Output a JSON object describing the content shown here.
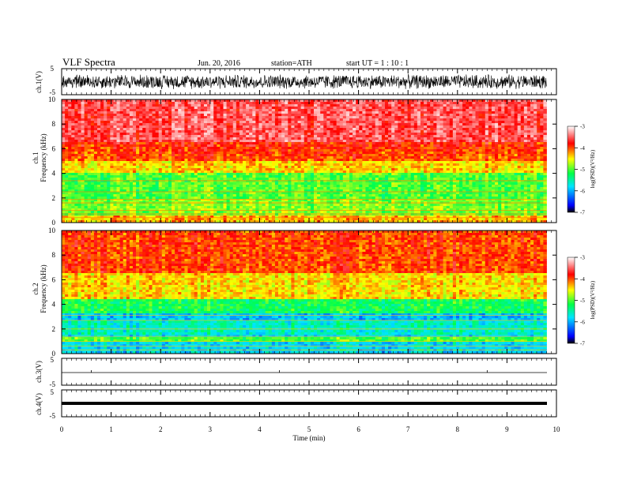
{
  "header": {
    "title": "VLF  Spectra",
    "date": "Jun. 20, 2016",
    "station": "station=ATH",
    "start": "start  UT  =   1  : 10 : 1"
  },
  "chart_data": [
    {
      "type": "line",
      "panel": "ch1-waveform",
      "ylabel": "ch.1(V)",
      "ylim": [
        -5,
        5
      ],
      "y_ticks": [
        "5",
        "-5"
      ],
      "xlim": [
        0,
        10
      ],
      "x_data_range": [
        0,
        9.8
      ],
      "description_of_signal": "dense noise band approx -2.5 to 2.5 V"
    },
    {
      "type": "heatmap",
      "panel": "ch1-spectrogram",
      "ylabel": "ch.1\nFrequency  (kHz)",
      "ylim": [
        0,
        10
      ],
      "y_ticks": [
        "0",
        "2",
        "4",
        "6",
        "8",
        "10"
      ],
      "xlim": [
        0,
        10
      ],
      "x_data_range": [
        0,
        9.8
      ],
      "colorbar": {
        "label": "log(PSD)(V²/Hz)",
        "range": [
          -7,
          -3
        ],
        "ticks": [
          "-3",
          "-4",
          "-5",
          "-6",
          "-7"
        ],
        "colors": [
          "#000000",
          "#0000ff",
          "#00e5ff",
          "#00ff4a",
          "#ffff00",
          "#ff0000",
          "#ffffff"
        ]
      }
    },
    {
      "type": "heatmap",
      "panel": "ch2-spectrogram",
      "ylabel": "ch.2\nFrequency  (kHz)",
      "ylim": [
        0,
        10
      ],
      "y_ticks": [
        "0",
        "2",
        "4",
        "6",
        "8",
        "10"
      ],
      "xlim": [
        0,
        10
      ],
      "x_data_range": [
        0,
        9.8
      ],
      "colorbar": {
        "label": "log(PSD)(V²/Hz)",
        "range": [
          -7,
          -3
        ],
        "ticks": [
          "-3",
          "-4",
          "-5",
          "-6",
          "-7"
        ],
        "colors": [
          "#000000",
          "#0000ff",
          "#00e5ff",
          "#00ff4a",
          "#ffff00",
          "#ff0000",
          "#ffffff"
        ]
      }
    },
    {
      "type": "line",
      "panel": "ch3-waveform",
      "ylabel": "ch.3(V)",
      "ylim": [
        -5,
        5
      ],
      "y_ticks": [
        "5",
        "-5"
      ],
      "value": 0
    },
    {
      "type": "line",
      "panel": "ch4-waveform",
      "ylabel": "ch.4(V)",
      "ylim": [
        -5,
        5
      ],
      "y_ticks": [
        "5",
        "-5"
      ],
      "value": 0,
      "xlabel": "Time  (min)",
      "x_ticks": [
        "0",
        "1",
        "2",
        "3",
        "4",
        "5",
        "6",
        "7",
        "8",
        "9",
        "10"
      ]
    }
  ]
}
